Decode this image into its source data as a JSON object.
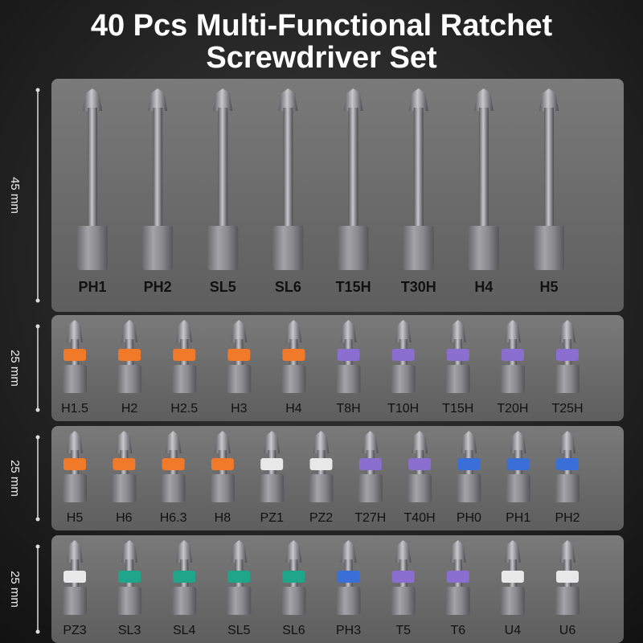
{
  "title": [
    "40 Pcs Multi-Functional Ratchet",
    "Screwdriver Set"
  ],
  "rows": [
    {
      "length": "45 mm",
      "bits": [
        {
          "label": "PH1"
        },
        {
          "label": "PH2"
        },
        {
          "label": "SL5"
        },
        {
          "label": "SL6"
        },
        {
          "label": "T15H"
        },
        {
          "label": "T30H"
        },
        {
          "label": "H4"
        },
        {
          "label": "H5"
        }
      ]
    },
    {
      "length": "25 mm",
      "bits": [
        {
          "label": "H1.5",
          "band": "#f07a2a"
        },
        {
          "label": "H2",
          "band": "#f07a2a"
        },
        {
          "label": "H2.5",
          "band": "#f07a2a"
        },
        {
          "label": "H3",
          "band": "#f07a2a"
        },
        {
          "label": "H4",
          "band": "#f07a2a"
        },
        {
          "label": "T8H",
          "band": "#8a6fd0"
        },
        {
          "label": "T10H",
          "band": "#8a6fd0"
        },
        {
          "label": "T15H",
          "band": "#8a6fd0"
        },
        {
          "label": "T20H",
          "band": "#8a6fd0"
        },
        {
          "label": "T25H",
          "band": "#8a6fd0"
        }
      ]
    },
    {
      "length": "25 mm",
      "bits": [
        {
          "label": "H5",
          "band": "#f07a2a"
        },
        {
          "label": "H6",
          "band": "#f07a2a"
        },
        {
          "label": "H6.3",
          "band": "#f07a2a"
        },
        {
          "label": "H8",
          "band": "#f07a2a"
        },
        {
          "label": "PZ1",
          "band": "#e8e8e8"
        },
        {
          "label": "PZ2",
          "band": "#e8e8e8"
        },
        {
          "label": "T27H",
          "band": "#8a6fd0"
        },
        {
          "label": "T40H",
          "band": "#8a6fd0"
        },
        {
          "label": "PH0",
          "band": "#3a6fd8"
        },
        {
          "label": "PH1",
          "band": "#3a6fd8"
        },
        {
          "label": "PH2",
          "band": "#3a6fd8"
        }
      ]
    },
    {
      "length": "25 mm",
      "bits": [
        {
          "label": "PZ3",
          "band": "#e8e8e8"
        },
        {
          "label": "SL3",
          "band": "#1fa58a"
        },
        {
          "label": "SL4",
          "band": "#1fa58a"
        },
        {
          "label": "SL5",
          "band": "#1fa58a"
        },
        {
          "label": "SL6",
          "band": "#1fa58a"
        },
        {
          "label": "PH3",
          "band": "#3a6fd8"
        },
        {
          "label": "T5",
          "band": "#8a6fd0"
        },
        {
          "label": "T6",
          "band": "#8a6fd0"
        },
        {
          "label": "U4",
          "band": "#e8e8e8"
        },
        {
          "label": "U6",
          "band": "#e8e8e8"
        }
      ]
    }
  ]
}
